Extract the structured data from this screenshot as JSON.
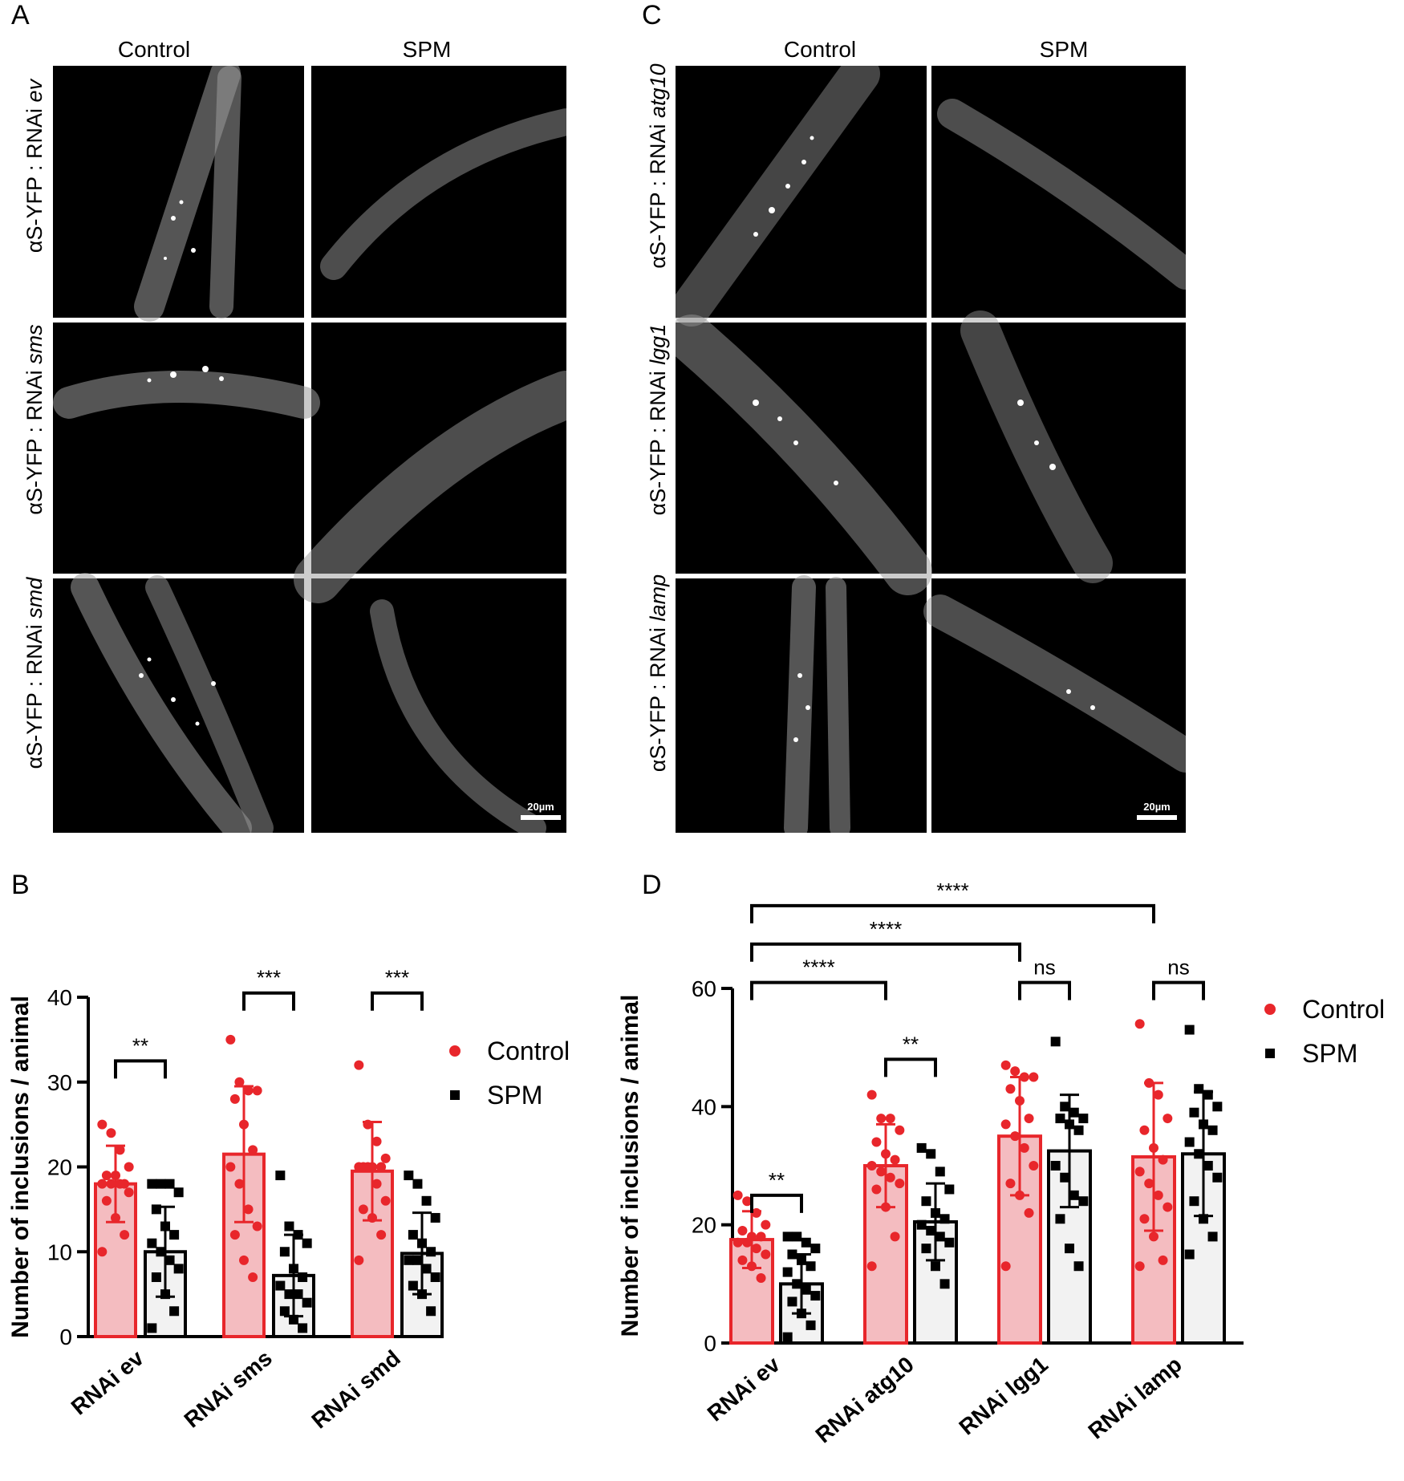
{
  "panels": {
    "A": {
      "letter": "A",
      "columns": [
        "Control",
        "SPM"
      ],
      "rows": [
        {
          "prefix": "αS-YFP : RNAi ",
          "gene": "ev"
        },
        {
          "prefix": "αS-YFP : RNAi ",
          "gene": "sms"
        },
        {
          "prefix": "αS-YFP : RNAi ",
          "gene": "smd"
        }
      ],
      "scale_label": "20µm"
    },
    "C": {
      "letter": "C",
      "columns": [
        "Control",
        "SPM"
      ],
      "rows": [
        {
          "prefix": "αS-YFP : RNAi ",
          "gene": "atg10"
        },
        {
          "prefix": "αS-YFP : RNAi ",
          "gene": "lgg1"
        },
        {
          "prefix": "αS-YFP : RNAi ",
          "gene": "lamp"
        }
      ],
      "scale_label": "20µm"
    },
    "B": {
      "letter": "B"
    },
    "D": {
      "letter": "D"
    }
  },
  "colors": {
    "control": "#e8262b",
    "control_fill": "#f4bcc0",
    "spm": "#000000",
    "spm_fill": "#f2f2f2"
  },
  "chart_data": [
    {
      "id": "B",
      "type": "bar",
      "ylabel": "Number of inclusions / animal",
      "ylim": [
        0,
        40
      ],
      "yticks": [
        0,
        10,
        20,
        30,
        40
      ],
      "categories": [
        "RNAi ev",
        "RNAi sms",
        "RNAi smd"
      ],
      "legend": [
        "Control",
        "SPM"
      ],
      "legend_position": "right",
      "series": [
        {
          "name": "Control",
          "values": [
            18,
            21.5,
            19.5
          ],
          "sd": [
            4.5,
            8,
            5.8
          ],
          "points": [
            [
              25,
              24,
              22,
              20,
              19,
              19,
              18,
              18,
              18,
              18,
              17,
              16,
              14,
              12,
              10
            ],
            [
              35,
              30,
              29,
              29,
              28,
              25,
              22,
              20,
              18,
              15,
              13,
              12,
              9,
              7
            ],
            [
              32,
              25,
              23,
              21,
              20,
              20,
              20,
              20,
              20,
              18,
              16,
              15,
              14,
              12,
              9
            ]
          ]
        },
        {
          "name": "SPM",
          "values": [
            10,
            7.2,
            9.8
          ],
          "sd": [
            5.3,
            4.8,
            4.8
          ],
          "points": [
            [
              18,
              18,
              18,
              17,
              15,
              13,
              12,
              11,
              10,
              9,
              8,
              7,
              5,
              3,
              1
            ],
            [
              19,
              13,
              12,
              11,
              10,
              8,
              7,
              6,
              5,
              5,
              4,
              3,
              2,
              1
            ],
            [
              19,
              18,
              16,
              14,
              12,
              11,
              10,
              9,
              9,
              8,
              7,
              6,
              5,
              3
            ]
          ]
        }
      ],
      "significance": [
        {
          "groups": [
            "RNAi ev"
          ],
          "label": "**"
        },
        {
          "groups": [
            "RNAi sms"
          ],
          "label": "***"
        },
        {
          "groups": [
            "RNAi smd"
          ],
          "label": "***"
        }
      ]
    },
    {
      "id": "D",
      "type": "bar",
      "ylabel": "Number of inclusions / animal",
      "ylim": [
        0,
        60
      ],
      "yticks": [
        0,
        20,
        40,
        60
      ],
      "categories": [
        "RNAi ev",
        "RNAi atg10",
        "RNAi lgg1",
        "RNAi lamp"
      ],
      "legend": [
        "Control",
        "SPM"
      ],
      "legend_position": "right",
      "series": [
        {
          "name": "Control",
          "values": [
            17.5,
            30,
            35,
            31.5
          ],
          "sd": [
            4.8,
            7,
            10,
            12.5
          ],
          "points": [
            [
              25,
              24,
              22,
              20,
              19,
              18,
              18,
              17,
              17,
              16,
              15,
              14,
              13,
              11
            ],
            [
              42,
              38,
              38,
              36,
              34,
              32,
              31,
              30,
              29,
              28,
              27,
              26,
              23,
              18,
              13
            ],
            [
              47,
              46,
              45,
              45,
              43,
              41,
              38,
              37,
              35,
              33,
              30,
              27,
              25,
              22,
              13
            ],
            [
              54,
              44,
              42,
              38,
              36,
              33,
              31,
              29,
              27,
              25,
              23,
              21,
              18,
              14,
              13
            ]
          ]
        },
        {
          "name": "SPM",
          "values": [
            10,
            20.5,
            32.5,
            32
          ],
          "sd": [
            5,
            6.5,
            9.5,
            10.5
          ],
          "points": [
            [
              18,
              18,
              17,
              16,
              15,
              14,
              13,
              12,
              10,
              9,
              8,
              7,
              5,
              3,
              1
            ],
            [
              33,
              32,
              29,
              26,
              24,
              22,
              21,
              20,
              19,
              18,
              17,
              16,
              13,
              10
            ],
            [
              51,
              40,
              39,
              38,
              38,
              37,
              36,
              30,
              28,
              25,
              24,
              21,
              16,
              13
            ],
            [
              53,
              43,
              42,
              40,
              39,
              37,
              36,
              34,
              32,
              30,
              28,
              24,
              21,
              18,
              15
            ]
          ]
        }
      ],
      "significance": [
        {
          "groups": [
            "RNAi ev"
          ],
          "label": "**"
        },
        {
          "groups": [
            "RNAi atg10"
          ],
          "label": "**"
        },
        {
          "groups": [
            "RNAi lgg1"
          ],
          "label": "ns"
        },
        {
          "groups": [
            "RNAi lamp"
          ],
          "label": "ns"
        },
        {
          "groups": [
            "RNAi ev",
            "RNAi atg10"
          ],
          "label": "****"
        },
        {
          "groups": [
            "RNAi ev",
            "RNAi lgg1"
          ],
          "label": "****"
        },
        {
          "groups": [
            "RNAi ev",
            "RNAi lamp"
          ],
          "label": "****"
        }
      ]
    }
  ]
}
